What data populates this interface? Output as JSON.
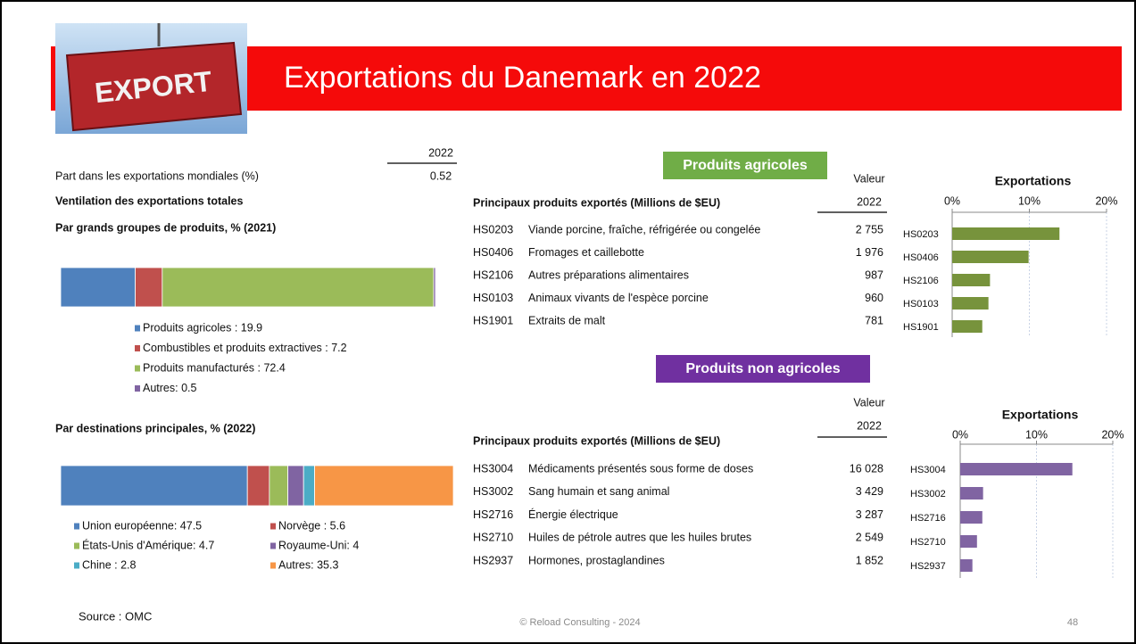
{
  "header": {
    "title": "Exportations du Danemark en 2022",
    "image_text": "EXPORT"
  },
  "summary": {
    "year": "2022",
    "label": "Part dans les exportations mondiales (%)",
    "value": "0.52",
    "section": "Ventilation des exportations totales"
  },
  "chart_data": [
    {
      "type": "stacked-bar",
      "title": "Par grands groupes de produits, % (2021)",
      "series": [
        {
          "name": "Produits agricoles : 19.9",
          "color": "#4f81bd",
          "values": [
            19.9
          ]
        },
        {
          "name": "Combustibles et produits extractives : 7.2",
          "color": "#c0504d",
          "values": [
            7.2
          ]
        },
        {
          "name": "Produits manufacturés : 72.4",
          "color": "#9bbb59",
          "values": [
            72.4
          ]
        },
        {
          "name": "Autres: 0.5",
          "color": "#8064a2",
          "values": [
            0.5
          ]
        }
      ]
    },
    {
      "type": "stacked-bar",
      "title": "Par destinations principales, % (2022)",
      "series": [
        {
          "name": "Union européenne: 47.5",
          "color": "#4f81bd",
          "values": [
            47.5
          ]
        },
        {
          "name": "Norvège : 5.6",
          "color": "#c0504d",
          "values": [
            5.6
          ]
        },
        {
          "name": "États-Unis d'Amérique: 4.7",
          "color": "#9bbb59",
          "values": [
            4.7
          ]
        },
        {
          "name": "Royaume-Uni: 4",
          "color": "#8064a2",
          "values": [
            4
          ]
        },
        {
          "name": "Chine : 2.8",
          "color": "#4bacc6",
          "values": [
            2.8
          ]
        },
        {
          "name": "Autres: 35.3",
          "color": "#f79646",
          "values": [
            35.3
          ]
        }
      ]
    },
    {
      "type": "bar",
      "title": "Exportations",
      "categories": [
        "HS0203",
        "HS0406",
        "HS2106",
        "HS0103",
        "HS1901"
      ],
      "values": [
        13.9,
        9.9,
        4.9,
        4.7,
        3.9
      ],
      "color": "#77933c",
      "xlim": [
        0,
        20
      ],
      "xticks": [
        {
          "value": 0,
          "label": "0%"
        },
        {
          "value": 10,
          "label": "10%"
        },
        {
          "value": 20,
          "label": "20%"
        }
      ],
      "grid": true
    },
    {
      "type": "bar",
      "title": "Exportations",
      "categories": [
        "HS3004",
        "HS3002",
        "HS2716",
        "HS2710",
        "HS2937"
      ],
      "values": [
        14.7,
        3.0,
        2.9,
        2.2,
        1.6
      ],
      "color": "#8064a2",
      "xlim": [
        0,
        20
      ],
      "xticks": [
        {
          "value": 0,
          "label": "0%"
        },
        {
          "value": 10,
          "label": "10%"
        },
        {
          "value": 20,
          "label": "20%"
        }
      ],
      "grid": true
    }
  ],
  "tables": [
    {
      "tag": "Produits agricoles",
      "value_header": "Valeur",
      "year": "2022",
      "heading": "Principaux produits exportés (Millions de $EU)",
      "rows": [
        [
          "HS0203",
          "Viande porcine, fraîche, réfrigérée ou congelée",
          "2 755"
        ],
        [
          "HS0406",
          "Fromages et caillebotte",
          "1 976"
        ],
        [
          "HS2106",
          "Autres préparations alimentaires",
          "987"
        ],
        [
          "HS0103",
          "Animaux vivants de l'espèce porcine",
          "960"
        ],
        [
          "HS1901",
          "Extraits de malt",
          "781"
        ]
      ]
    },
    {
      "tag": "Produits non agricoles",
      "value_header": "Valeur",
      "year": "2022",
      "heading": "Principaux produits exportés (Millions de $EU)",
      "rows": [
        [
          "HS3004",
          "Médicaments présentés sous forme de doses",
          "16 028"
        ],
        [
          "HS3002",
          "Sang humain et sang animal",
          "3 429"
        ],
        [
          "HS2716",
          "Énergie électrique",
          "3 287"
        ],
        [
          "HS2710",
          "Huiles de pétrole autres que les huiles brutes",
          "2 549"
        ],
        [
          "HS2937",
          "Hormones, prostaglandines",
          "1 852"
        ]
      ]
    }
  ],
  "footer": {
    "source": "Source : OMC",
    "copyright": "© Reload Consulting - 2024",
    "page": "48"
  }
}
